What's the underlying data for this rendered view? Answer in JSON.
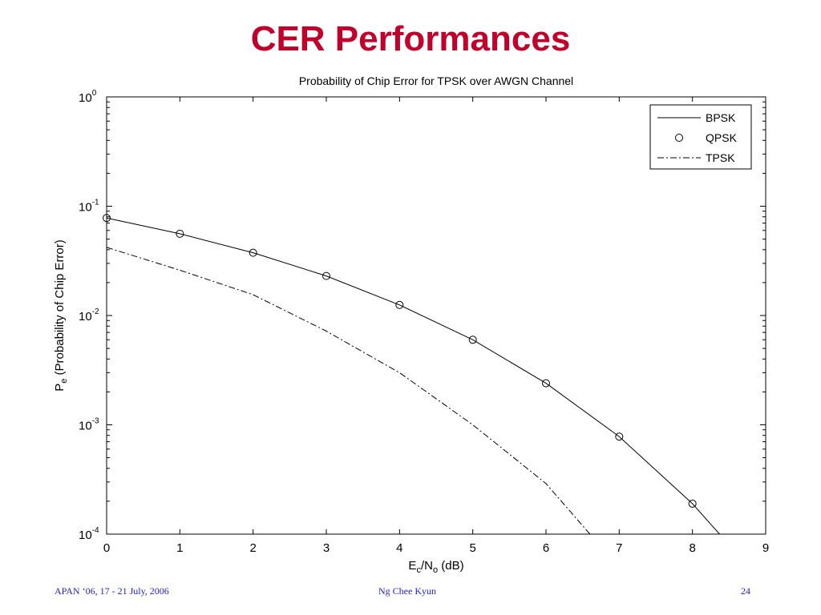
{
  "slide": {
    "title": "CER Performances",
    "footer_left": "APAN ‘06, 17 - 21 July, 2006",
    "footer_center": "Ng Chee Kyun",
    "footer_right": "24"
  },
  "chart_data": {
    "type": "line",
    "title": "Probability of Chip Error for TPSK over AWGN Channel",
    "xlabel": {
      "main": "E",
      "sub1": "c",
      "mid": "/N",
      "sub2": "o",
      "tail": " (dB)"
    },
    "ylabel": {
      "main": "P",
      "sub": "e",
      "tail": " (Probability of Chip Error)"
    },
    "xlim": [
      0,
      9
    ],
    "ylim": [
      0.0001,
      1
    ],
    "yscale": "log",
    "x_ticks": [
      "0",
      "1",
      "2",
      "3",
      "4",
      "5",
      "6",
      "7",
      "8",
      "9"
    ],
    "y_ticks": [
      {
        "value": 1,
        "base": "10",
        "exp": "0"
      },
      {
        "value": 0.1,
        "base": "10",
        "exp": "-1"
      },
      {
        "value": 0.01,
        "base": "10",
        "exp": "-2"
      },
      {
        "value": 0.001,
        "base": "10",
        "exp": "-3"
      },
      {
        "value": 0.0001,
        "base": "10",
        "exp": "-4"
      }
    ],
    "grid": false,
    "legend_position": "top-right",
    "series": [
      {
        "name": "BPSK",
        "style": "solid",
        "x": [
          0,
          1,
          2,
          3,
          4,
          5,
          6,
          7,
          8,
          8.37
        ],
        "y": [
          0.078,
          0.056,
          0.0375,
          0.023,
          0.0125,
          0.006,
          0.0024,
          0.00078,
          0.00019,
          0.0001
        ]
      },
      {
        "name": "QPSK",
        "style": "marker-circle",
        "x": [
          0,
          1,
          2,
          3,
          4,
          5,
          6,
          7,
          8
        ],
        "y": [
          0.078,
          0.056,
          0.0375,
          0.023,
          0.0125,
          0.006,
          0.0024,
          0.00078,
          0.00019
        ]
      },
      {
        "name": "TPSK",
        "style": "dashdot",
        "x": [
          0,
          1,
          2,
          3,
          4,
          5,
          6,
          6.6
        ],
        "y": [
          0.042,
          0.026,
          0.0155,
          0.0072,
          0.003,
          0.001,
          0.00029,
          0.0001
        ]
      }
    ]
  }
}
